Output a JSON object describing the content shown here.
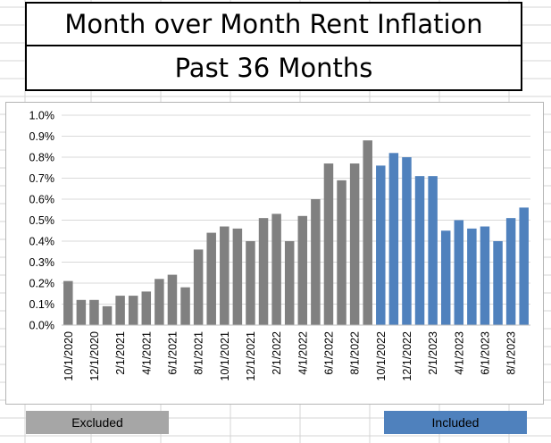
{
  "title": {
    "line1": "Month over Month Rent Inflation",
    "line2": "Past 36 Months"
  },
  "labels": {
    "excluded": "Excluded",
    "included": "Included"
  },
  "colors": {
    "excluded": "#808080",
    "included": "#4f81bd",
    "excluded_label_bg": "#a6a6a6",
    "included_label_bg": "#4f81bd",
    "gridline": "#d9d9d9"
  },
  "chart_data": {
    "type": "bar",
    "ylim": [
      0,
      1.0
    ],
    "y_ticks": [
      "0.0%",
      "0.1%",
      "0.2%",
      "0.3%",
      "0.4%",
      "0.5%",
      "0.6%",
      "0.7%",
      "0.8%",
      "0.9%",
      "1.0%"
    ],
    "grid": true,
    "categories": [
      "10/1/2020",
      "11/1/2020",
      "12/1/2020",
      "1/1/2021",
      "2/1/2021",
      "3/1/2021",
      "4/1/2021",
      "5/1/2021",
      "6/1/2021",
      "7/1/2021",
      "8/1/2021",
      "9/1/2021",
      "10/1/2021",
      "11/1/2021",
      "12/1/2021",
      "1/1/2022",
      "2/1/2022",
      "3/1/2022",
      "4/1/2022",
      "5/1/2022",
      "6/1/2022",
      "7/1/2022",
      "8/1/2022",
      "9/1/2022",
      "10/1/2022",
      "11/1/2022",
      "12/1/2022",
      "1/1/2023",
      "2/1/2023",
      "3/1/2023",
      "4/1/2023",
      "5/1/2023",
      "6/1/2023",
      "7/1/2023",
      "8/1/2023",
      "9/1/2023"
    ],
    "x_tick_labels": [
      "10/1/2020",
      "12/1/2020",
      "2/1/2021",
      "4/1/2021",
      "6/1/2021",
      "8/1/2021",
      "10/1/2021",
      "12/1/2021",
      "2/1/2022",
      "4/1/2022",
      "6/1/2022",
      "8/1/2022",
      "10/1/2022",
      "12/1/2022",
      "2/1/2023",
      "4/1/2023",
      "6/1/2023",
      "8/1/2023"
    ],
    "values": [
      0.21,
      0.12,
      0.12,
      0.09,
      0.14,
      0.14,
      0.16,
      0.22,
      0.24,
      0.18,
      0.36,
      0.44,
      0.47,
      0.46,
      0.4,
      0.51,
      0.53,
      0.4,
      0.52,
      0.6,
      0.77,
      0.69,
      0.77,
      0.88,
      0.76,
      0.82,
      0.8,
      0.71,
      0.71,
      0.45,
      0.5,
      0.46,
      0.47,
      0.4,
      0.51,
      0.56
    ],
    "included_from_index": 24
  }
}
